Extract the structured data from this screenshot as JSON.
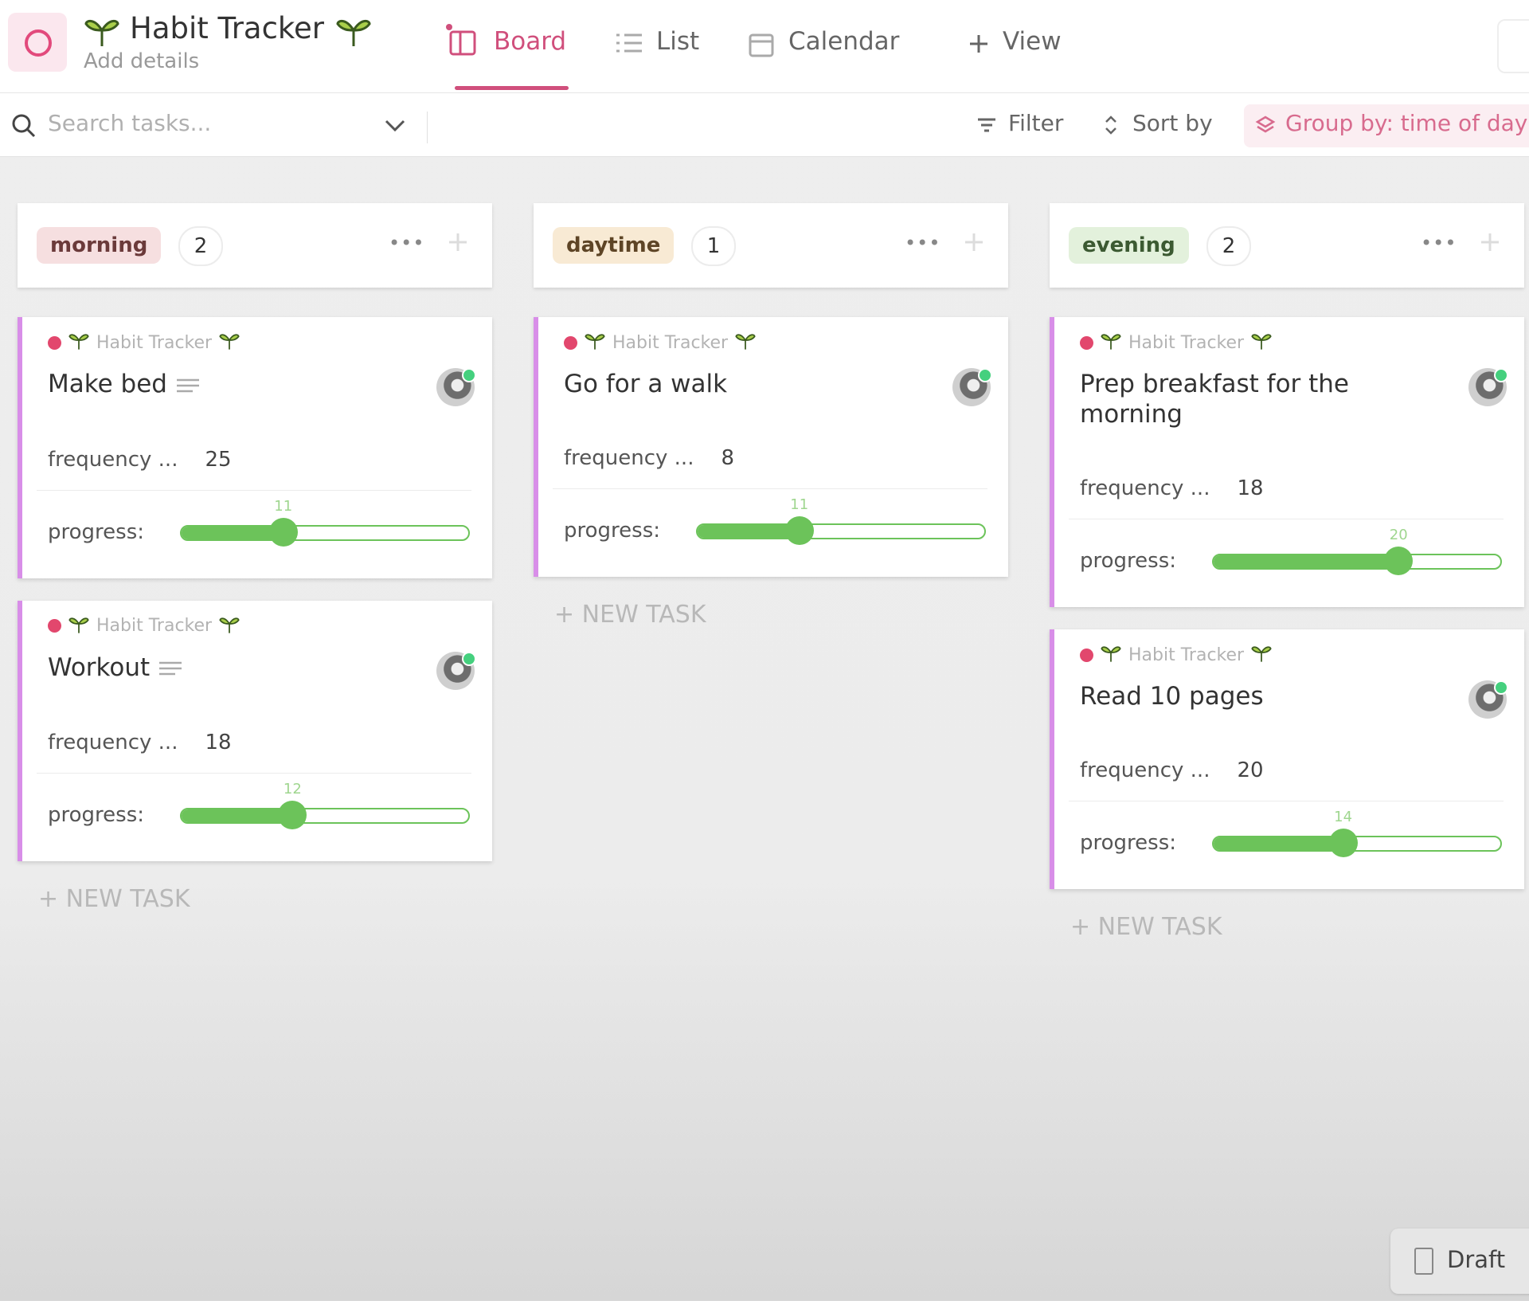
{
  "header": {
    "title": "Habit Tracker",
    "subtitle": "Add details",
    "tabs": [
      "Board",
      "List",
      "Calendar",
      "View"
    ]
  },
  "toolbar": {
    "search": "Search tasks...",
    "filter": "Filter",
    "sort": "Sort by",
    "group": "Group by: time of day"
  },
  "progress_range": [
    0,
    31
  ],
  "columns": [
    {
      "name": "morning",
      "count": 2,
      "color": "#f6dfe0",
      "text_color": "#6b3a3a",
      "tasks": [
        {
          "list": "Habit Tracker",
          "title": "Make bed",
          "frequency_label": "frequency ...",
          "frequency": 25,
          "progress_label": "progress:",
          "progress": 11
        },
        {
          "list": "Habit Tracker",
          "title": "Workout",
          "frequency_label": "frequency ...",
          "frequency": 18,
          "progress_label": "progress:",
          "progress": 12
        }
      ]
    },
    {
      "name": "daytime",
      "count": 1,
      "color": "#f8ead4",
      "text_color": "#5e4526",
      "tasks": [
        {
          "list": "Habit Tracker",
          "title": "Go for a walk",
          "frequency_label": "frequency ...",
          "frequency": 8,
          "progress_label": "progress:",
          "progress": 11
        }
      ]
    },
    {
      "name": "evening",
      "count": 2,
      "color": "#e3f1dc",
      "text_color": "#3c5a32",
      "tasks": [
        {
          "list": "Habit Tracker",
          "title": "Prep breakfast for the morning",
          "frequency_label": "frequency ...",
          "frequency": 18,
          "progress_label": "progress:",
          "progress": 20
        },
        {
          "list": "Habit Tracker",
          "title": "Read 10 pages",
          "frequency_label": "frequency ...",
          "frequency": 20,
          "progress_label": "progress:",
          "progress": 14
        }
      ]
    }
  ],
  "new_task": "+ NEW TASK",
  "draft": "Draft"
}
